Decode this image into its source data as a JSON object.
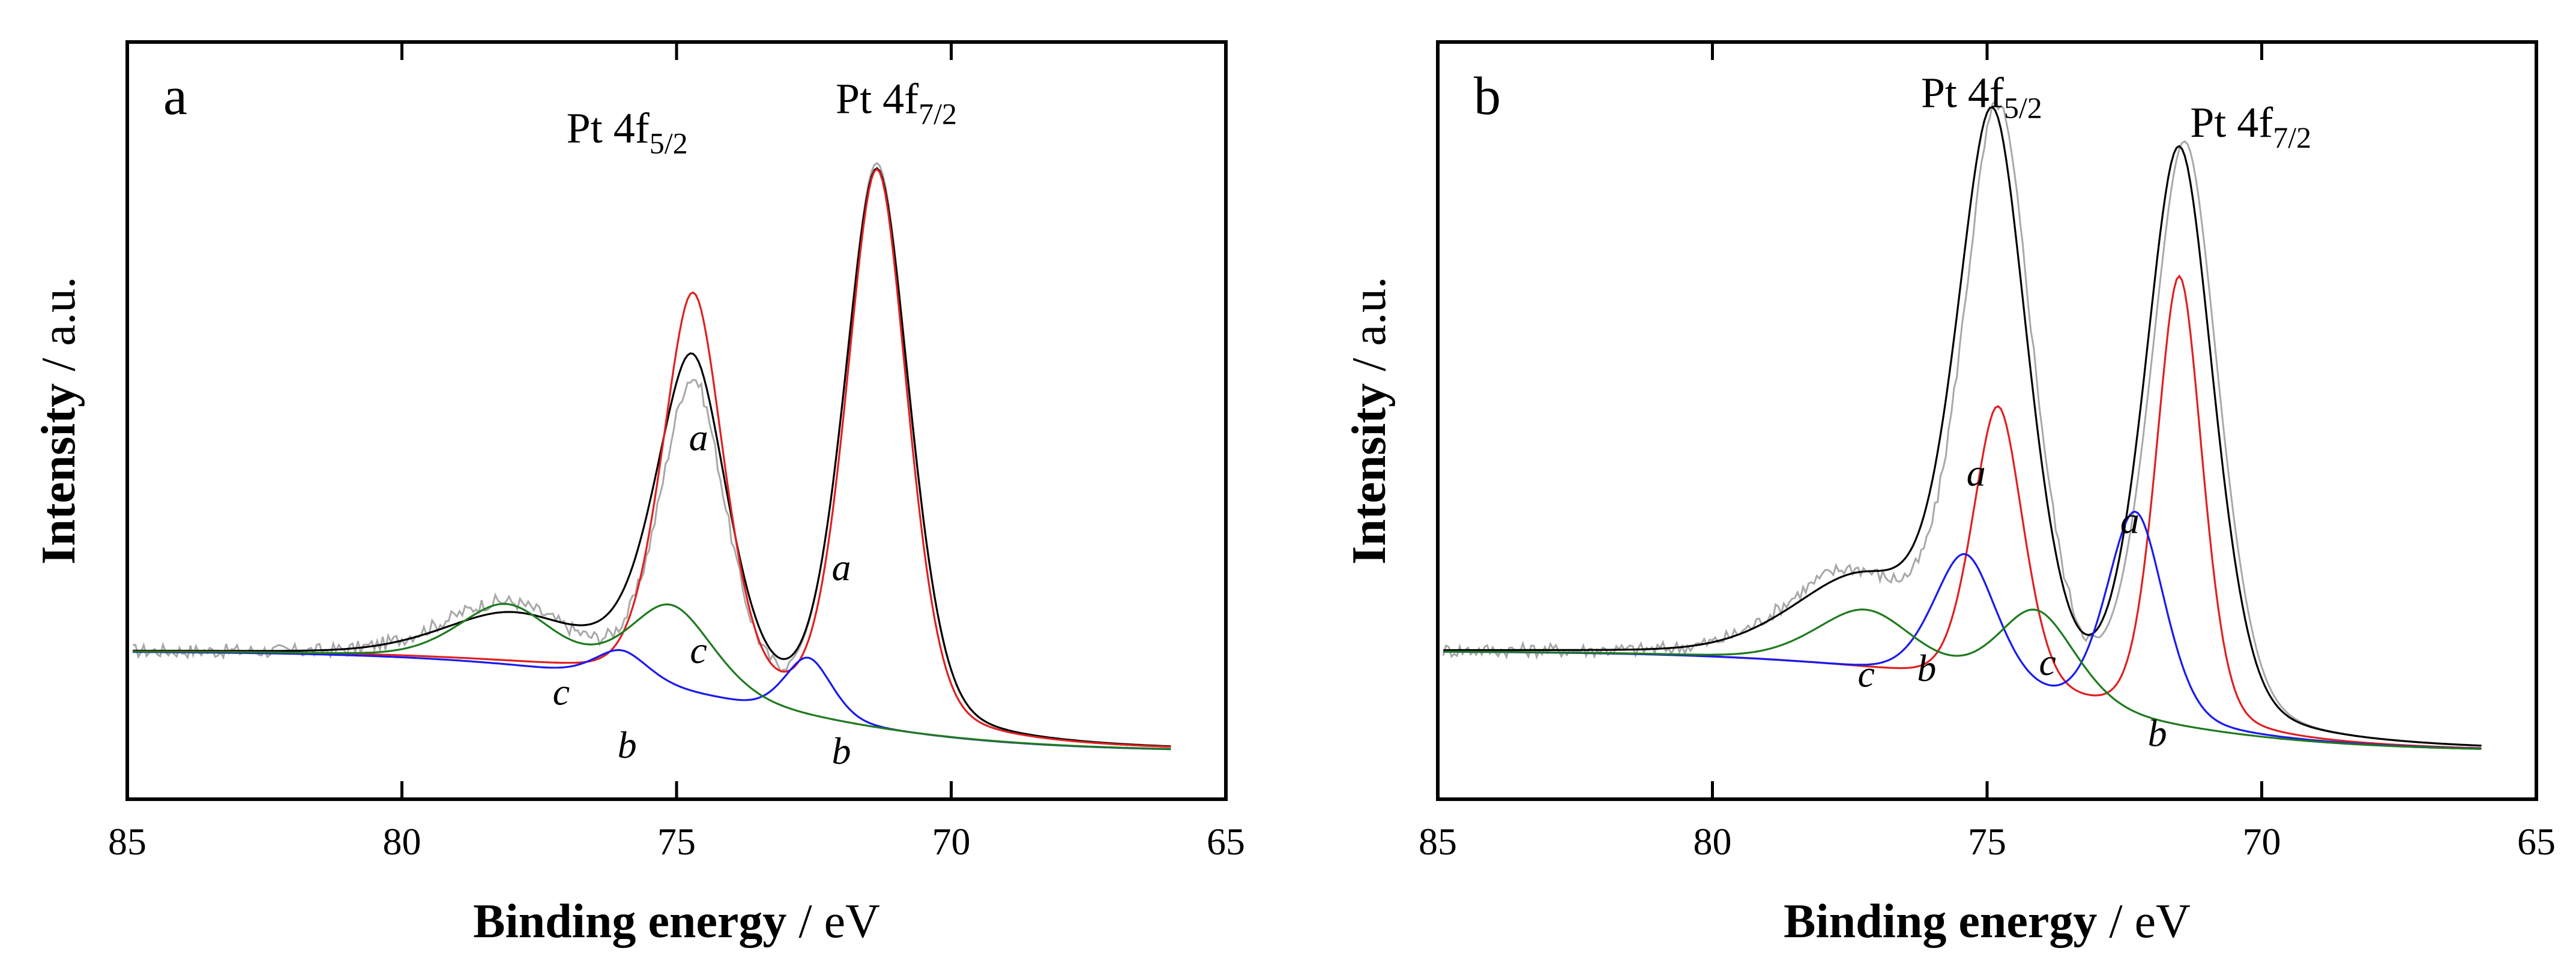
{
  "chart_data": [
    {
      "panel": "a",
      "type": "line",
      "xlabel": {
        "bold": "Binding energy",
        "rest": " / eV"
      },
      "ylabel": {
        "bold": "Intensity",
        "rest": " / a.u."
      },
      "xlim": [
        85,
        65
      ],
      "xticks": [
        85,
        80,
        75,
        70,
        65
      ],
      "ylim": [
        -0.08,
        1.2
      ],
      "peak_labels": [
        {
          "base": "Pt 4f",
          "sub": "5/2",
          "x": 75.9,
          "y": 1.03
        },
        {
          "base": "Pt 4f",
          "sub": "7/2",
          "x": 71.0,
          "y": 1.08
        }
      ],
      "curve_labels": [
        {
          "text": "a",
          "x": 74.6,
          "y": 0.51
        },
        {
          "text": "a",
          "x": 72.0,
          "y": 0.29
        },
        {
          "text": "c",
          "x": 74.6,
          "y": 0.15
        },
        {
          "text": "c",
          "x": 77.1,
          "y": 0.08
        },
        {
          "text": "b",
          "x": 75.9,
          "y": -0.01
        },
        {
          "text": "b",
          "x": 72.0,
          "y": -0.02
        }
      ],
      "series": [
        {
          "name": "experimental",
          "color": "#a8a8a8",
          "peaks": [
            [
              71.35,
              0.95,
              0.62
            ],
            [
              74.7,
              0.52,
              0.62
            ],
            [
              78.1,
              0.1,
              1.2
            ]
          ],
          "noise": 0.012
        },
        {
          "name": "envelope",
          "color": "#000000",
          "peaks": [
            [
              71.35,
              0.94,
              0.62
            ],
            [
              74.7,
              0.51,
              0.65
            ],
            [
              78.0,
              0.08,
              1.3
            ],
            [
              75.2,
              0.06,
              0.9
            ]
          ]
        },
        {
          "name": "a",
          "color": "#e02020",
          "peaks": [
            [
              71.35,
              0.94,
              0.58
            ],
            [
              74.7,
              0.67,
              0.58
            ]
          ]
        },
        {
          "name": "b",
          "color": "#1a1aee",
          "peaks": [
            [
              72.6,
              0.1,
              0.45
            ],
            [
              76.0,
              0.05,
              0.5
            ]
          ]
        },
        {
          "name": "c",
          "color": "#1e7a1e",
          "peaks": [
            [
              75.1,
              0.14,
              0.8
            ],
            [
              78.1,
              0.1,
              0.9
            ]
          ]
        }
      ]
    },
    {
      "panel": "b",
      "type": "line",
      "xlabel": {
        "bold": "Binding energy",
        "rest": " / eV"
      },
      "ylabel": {
        "bold": "Intensity",
        "rest": " / a.u."
      },
      "xlim": [
        85,
        65
      ],
      "xticks": [
        85,
        80,
        75,
        70,
        65
      ],
      "ylim": [
        -0.08,
        1.2
      ],
      "peak_labels": [
        {
          "base": "Pt 4f",
          "sub": "5/2",
          "x": 75.1,
          "y": 1.09
        },
        {
          "base": "Pt 4f",
          "sub": "7/2",
          "x": 70.2,
          "y": 1.04
        }
      ],
      "curve_labels": [
        {
          "text": "a",
          "x": 75.2,
          "y": 0.45
        },
        {
          "text": "a",
          "x": 72.4,
          "y": 0.37
        },
        {
          "text": "b",
          "x": 76.1,
          "y": 0.12
        },
        {
          "text": "c",
          "x": 77.2,
          "y": 0.11
        },
        {
          "text": "c",
          "x": 73.9,
          "y": 0.13
        },
        {
          "text": "b",
          "x": 71.9,
          "y": 0.01
        }
      ],
      "series": [
        {
          "name": "experimental",
          "color": "#a8a8a8",
          "peaks": [
            [
              71.4,
              0.98,
              0.64
            ],
            [
              74.8,
              0.97,
              0.66
            ],
            [
              77.5,
              0.15,
              1.2
            ]
          ],
          "noise": 0.012
        },
        {
          "name": "envelope",
          "color": "#000000",
          "peaks": [
            [
              71.5,
              0.97,
              0.65
            ],
            [
              74.9,
              0.95,
              0.67
            ],
            [
              77.3,
              0.14,
              1.3
            ]
          ]
        },
        {
          "name": "a",
          "color": "#e02020",
          "peaks": [
            [
              71.5,
              0.76,
              0.44
            ],
            [
              74.8,
              0.48,
              0.48
            ]
          ]
        },
        {
          "name": "b",
          "color": "#1a1aee",
          "peaks": [
            [
              72.3,
              0.35,
              0.55
            ],
            [
              75.4,
              0.22,
              0.6
            ]
          ]
        },
        {
          "name": "c",
          "color": "#1e7a1e",
          "peaks": [
            [
              74.1,
              0.15,
              0.75
            ],
            [
              77.2,
              0.1,
              0.95
            ]
          ]
        }
      ]
    }
  ]
}
